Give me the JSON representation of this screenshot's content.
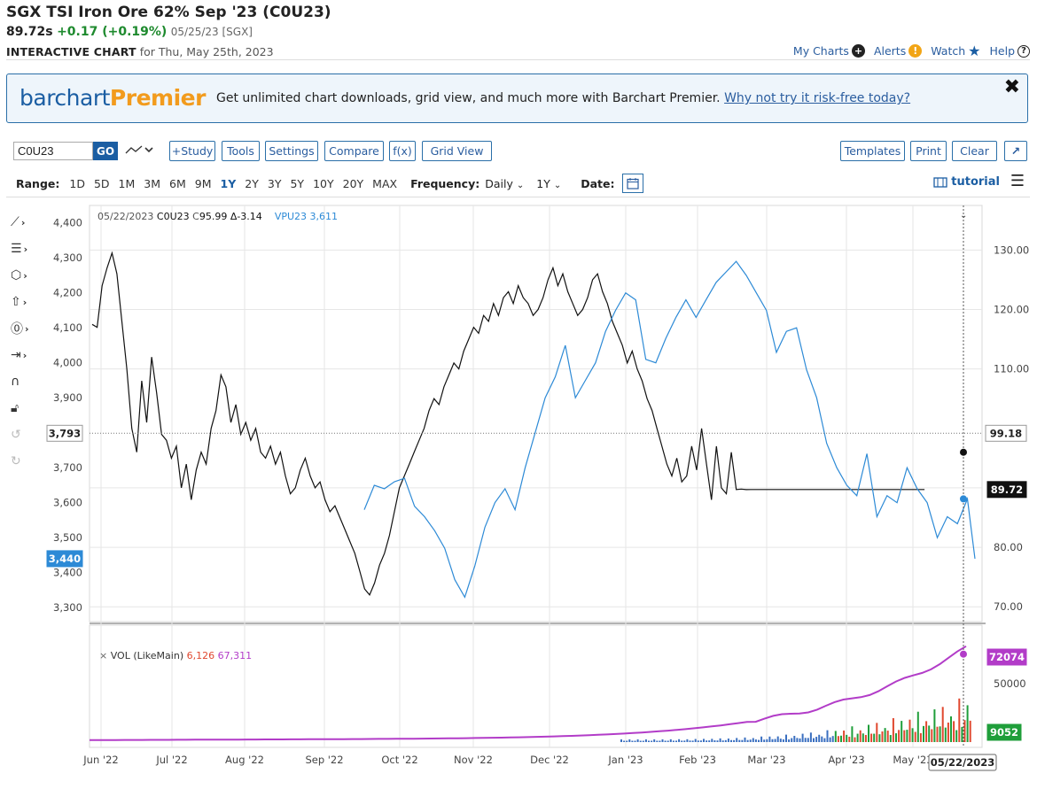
{
  "header": {
    "title": "SGX TSI Iron Ore 62% Sep '23 (C0U23)",
    "last": "89.72s",
    "change": "+0.17 (+0.19%)",
    "quote_date": "05/25/23 [SGX]",
    "subtitle_bold": "INTERACTIVE CHART",
    "subtitle_rest": "for Thu, May 25th, 2023"
  },
  "top_links": {
    "my_charts": "My Charts",
    "alerts": "Alerts",
    "watch": "Watch",
    "help": "Help"
  },
  "banner": {
    "logo_a": "barchart",
    "logo_b": "Premier",
    "message": "Get unlimited chart downloads, grid view, and much more with Barchart Premier.",
    "link": "Why not try it risk-free today?",
    "close": "✖"
  },
  "toolbar": {
    "symbol_value": "C0U23",
    "go": "GO",
    "study": "+Study",
    "tools": "Tools",
    "settings": "Settings",
    "compare": "Compare",
    "fx": "f(x)",
    "grid_view": "Grid View",
    "templates": "Templates",
    "print": "Print",
    "clear": "Clear",
    "expand": "↗"
  },
  "rangebar": {
    "range_label": "Range:",
    "ranges": [
      "1D",
      "5D",
      "1M",
      "3M",
      "6M",
      "9M",
      "1Y",
      "2Y",
      "3Y",
      "5Y",
      "10Y",
      "20Y",
      "MAX"
    ],
    "selected": "1Y",
    "frequency_label": "Frequency:",
    "frequency_value": "Daily",
    "period_value": "1Y",
    "date_label": "Date:",
    "tutorial": "tutorial"
  },
  "legend": {
    "date": "05/22/2023",
    "symbol": "C0U23",
    "close_label": "C",
    "close": "95.99",
    "delta": "Δ-3.14",
    "compare": "VPU23 3,611",
    "volume_label": "VOL (LikeMain)",
    "vol_value": "6,126",
    "oi_value": "67,311"
  },
  "colors": {
    "main": "#111111",
    "compare": "#2d8ad6",
    "volume_line": "#b23cc8",
    "vol_up": "#1f9e3a",
    "vol_down": "#e0482f",
    "vol_blue": "#3a6fc0"
  },
  "chart_data": {
    "type": "line",
    "x_labels": [
      "Jun '22",
      "Jul '22",
      "Aug '22",
      "Sep '22",
      "Oct '22",
      "Nov '22",
      "Dec '22",
      "Jan '23",
      "Feb '23",
      "Mar '23",
      "Apr '23",
      "May '23"
    ],
    "left_axis": {
      "ticks": [
        4400,
        4300,
        4200,
        4100,
        4000,
        3900,
        3800,
        3700,
        3600,
        3500,
        3400,
        3300
      ],
      "range": [
        3260,
        4450
      ]
    },
    "right_axis": {
      "ticks": [
        130,
        120,
        110,
        90,
        80,
        70
      ],
      "range": [
        67.5,
        137.5
      ]
    },
    "markers": {
      "left_price": "3,793",
      "left_compare": "3,440",
      "right_price": "99.18",
      "right_last": "89.72",
      "vol_oi": "72074",
      "vol_last": "9052",
      "vol_tick": "50000",
      "cursor_date": "05/22/2023"
    },
    "series": [
      {
        "name": "C0U23",
        "axis": "right",
        "x": [
          0,
          2,
          4,
          6,
          8,
          10,
          12,
          14,
          16,
          18,
          20,
          22,
          24,
          26,
          28,
          30,
          32,
          34,
          36,
          38,
          40,
          42,
          44,
          46,
          48,
          50,
          52,
          54,
          56,
          58,
          60,
          62,
          64,
          66,
          68,
          70,
          72,
          74,
          76,
          78,
          80,
          82,
          84,
          86,
          88,
          90,
          92,
          94,
          96,
          98,
          100,
          102,
          104,
          106,
          108,
          110,
          112,
          114,
          116,
          118,
          120,
          122,
          124,
          126,
          128,
          130,
          132,
          134,
          136,
          138,
          140,
          142,
          144,
          146,
          148,
          150,
          152,
          154,
          156,
          158,
          160,
          162,
          164,
          166,
          168,
          170,
          172,
          174,
          176,
          178,
          180,
          182,
          184,
          186,
          188,
          190,
          192,
          194,
          196,
          198,
          200,
          202,
          204,
          206,
          208,
          210,
          212,
          214,
          216,
          218,
          220,
          222,
          224,
          226,
          228,
          230,
          232,
          234,
          236,
          238,
          240,
          242,
          244,
          246,
          248,
          250,
          252,
          254,
          256,
          258,
          260,
          262,
          264,
          266,
          268,
          270,
          272,
          274,
          276,
          278,
          280,
          282,
          284,
          286,
          288,
          290,
          292,
          294,
          296,
          298,
          300,
          302,
          304,
          306,
          308,
          310,
          312,
          314,
          316,
          318,
          320,
          322,
          324,
          326,
          328,
          330,
          332,
          334,
          336,
          338,
          340,
          342,
          344,
          346,
          348,
          350,
          352,
          354,
          356
        ],
        "values": [
          117.5,
          117,
          124,
          127,
          129.5,
          126,
          118,
          110,
          100,
          96,
          108,
          101,
          112,
          106,
          99,
          98,
          95,
          97,
          90,
          94,
          88,
          93,
          96,
          94,
          100,
          103,
          109,
          107,
          101,
          104,
          99,
          101,
          98,
          100,
          96,
          95,
          97,
          94,
          96,
          92,
          89,
          90,
          93,
          95,
          92,
          90,
          91,
          88,
          86,
          87,
          85,
          83,
          81,
          79,
          76,
          73,
          72,
          74,
          77,
          79,
          82,
          86,
          90,
          92,
          94,
          96,
          98,
          100,
          103,
          105,
          104,
          107,
          109,
          111,
          110,
          113,
          115,
          117,
          116,
          119,
          118,
          121,
          119,
          122,
          123,
          121,
          124,
          122,
          121,
          119,
          120,
          122,
          125,
          127,
          124,
          126,
          123,
          121,
          119,
          120,
          122,
          125,
          126,
          123,
          121,
          118,
          116,
          114,
          111,
          113,
          110,
          108,
          105,
          103,
          100,
          97,
          94,
          92,
          95,
          91,
          92,
          97,
          93,
          100,
          94,
          88,
          97,
          90,
          89,
          95.99,
          89.72,
          89.8,
          89.7,
          89.72,
          89.72,
          89.72,
          89.72,
          89.72,
          89.72,
          89.72,
          89.72,
          89.72,
          89.72,
          89.72,
          89.72,
          89.72,
          89.72,
          89.72,
          89.72,
          89.72,
          89.72,
          89.72,
          89.72,
          89.72,
          89.72,
          89.72,
          89.72,
          89.72,
          89.72,
          89.72,
          89.72,
          89.72,
          89.72,
          89.72,
          89.72,
          89.72,
          89.72,
          89.72,
          89.72,
          89.72,
          89.72,
          89.72,
          89.72,
          89.72,
          89.72,
          89.72,
          89.72,
          89.72,
          89.72
        ]
      },
      {
        "name": "VPU23",
        "axis": "left",
        "dates": [
          "2022-09-24",
          "2022-09-28",
          "2022-10-02",
          "2022-10-06",
          "2022-10-10",
          "2022-10-14",
          "2022-10-18",
          "2022-10-22",
          "2022-10-26",
          "2022-10-30",
          "2022-11-03",
          "2022-11-07",
          "2022-11-11",
          "2022-11-15",
          "2022-11-19",
          "2022-11-23",
          "2022-11-27",
          "2022-12-01",
          "2022-12-05",
          "2022-12-09",
          "2022-12-13",
          "2022-12-17",
          "2022-12-21",
          "2022-12-25",
          "2022-12-29",
          "2023-01-02",
          "2023-01-06",
          "2023-01-10",
          "2023-01-14",
          "2023-01-18",
          "2023-01-22",
          "2023-01-26",
          "2023-01-30",
          "2023-02-03",
          "2023-02-07",
          "2023-02-11",
          "2023-02-15",
          "2023-02-19",
          "2023-02-23",
          "2023-02-27",
          "2023-03-03",
          "2023-03-07",
          "2023-03-11",
          "2023-03-15",
          "2023-03-19",
          "2023-03-23",
          "2023-03-27",
          "2023-03-31",
          "2023-04-04",
          "2023-04-08",
          "2023-04-12",
          "2023-04-16",
          "2023-04-20",
          "2023-04-24",
          "2023-04-28",
          "2023-05-02",
          "2023-05-06",
          "2023-05-10",
          "2023-05-14",
          "2023-05-18",
          "2023-05-22",
          "2023-05-25"
        ],
        "values": [
          3580,
          3650,
          3640,
          3660,
          3670,
          3590,
          3560,
          3520,
          3470,
          3380,
          3330,
          3420,
          3530,
          3600,
          3640,
          3580,
          3700,
          3800,
          3900,
          3960,
          4050,
          3900,
          3950,
          4000,
          4090,
          4150,
          4200,
          4180,
          4010,
          4000,
          4070,
          4130,
          4180,
          4130,
          4180,
          4230,
          4260,
          4290,
          4250,
          4200,
          4150,
          4030,
          4090,
          4100,
          3980,
          3900,
          3770,
          3700,
          3650,
          3620,
          3740,
          3560,
          3620,
          3600,
          3700,
          3640,
          3600,
          3500,
          3560,
          3540,
          3611,
          3440
        ]
      }
    ],
    "volume": {
      "line_label": "VOL (LikeMain)",
      "oi_end": 72074,
      "last_volume": 9052
    }
  }
}
